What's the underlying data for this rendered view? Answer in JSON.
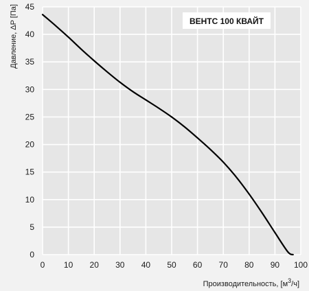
{
  "chart_data": {
    "type": "line",
    "title": "ВЕНТС 100 КВАЙТ",
    "xlabel": "Производительность, [м3/ч]",
    "xlabel_main": "Производительность, [м",
    "xlabel_sup": "3",
    "xlabel_tail": "/ч]",
    "ylabel": "Давление, ΔP [Па]",
    "xlim": [
      0,
      100
    ],
    "ylim": [
      0,
      45
    ],
    "x_ticks": [
      0,
      10,
      20,
      30,
      40,
      50,
      60,
      70,
      80,
      90,
      100
    ],
    "y_ticks": [
      0,
      5,
      10,
      15,
      20,
      25,
      30,
      35,
      40,
      45
    ],
    "grid": true,
    "colors": {
      "background": "#f2f2f2",
      "plot_area": "#e6e6e6",
      "grid": "#ffffff",
      "line": "#000000"
    },
    "series": [
      {
        "x": [
          0,
          5,
          10,
          15,
          20,
          25,
          30,
          35,
          40,
          45,
          50,
          55,
          60,
          65,
          70,
          75,
          80,
          85,
          90,
          95,
          97
        ],
        "y": [
          43.6,
          41.6,
          39.5,
          37.3,
          35.2,
          33.2,
          31.3,
          29.6,
          28.1,
          26.6,
          25.0,
          23.2,
          21.2,
          19.1,
          16.8,
          14.1,
          11.0,
          7.6,
          4.0,
          0.5,
          0
        ]
      }
    ]
  }
}
